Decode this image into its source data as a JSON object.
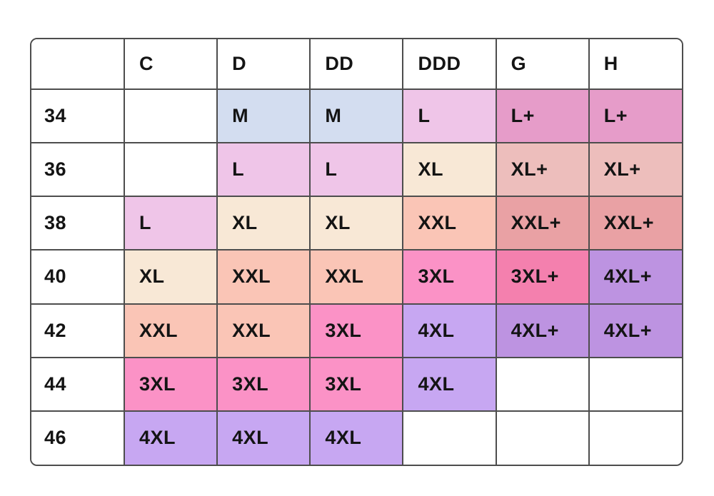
{
  "page": {
    "background": "#ffffff",
    "grid_border_color": "#4d4d4d",
    "text_color": "#141414"
  },
  "chart_data": {
    "type": "table",
    "title": "",
    "description_semantic": "bra-band-and-cup-size-to-clothing-size-conversion-chart",
    "columns": [
      "",
      "C",
      "D",
      "DD",
      "DDD",
      "G",
      "H"
    ],
    "rows": [
      [
        "34",
        "",
        "M",
        "M",
        "L",
        "L+",
        "L+"
      ],
      [
        "36",
        "",
        "L",
        "L",
        "XL",
        "XL+",
        "XL+"
      ],
      [
        "38",
        "L",
        "XL",
        "XL",
        "XXL",
        "XXL+",
        "XXL+"
      ],
      [
        "40",
        "XL",
        "XXL",
        "XXL",
        "3XL",
        "3XL+",
        "4XL+"
      ],
      [
        "42",
        "XXL",
        "XXL",
        "3XL",
        "4XL",
        "4XL+",
        "4XL+"
      ],
      [
        "44",
        "3XL",
        "3XL",
        "3XL",
        "4XL",
        "",
        ""
      ],
      [
        "46",
        "4XL",
        "4XL",
        "4XL",
        "",
        "",
        ""
      ]
    ],
    "cell_colors": {
      "": "#ffffff",
      "M": "#d3ddf0",
      "L": "#efc5e8",
      "L+": "#e69cc9",
      "XL": "#f8e8d6",
      "XL+": "#edbebc",
      "XXL": "#fac5b6",
      "XXL+": "#e9a1a4",
      "3XL": "#fb92c6",
      "3XL+": "#f480ae",
      "4XL": "#c7a7f2",
      "4XL+": "#bd93e1"
    },
    "layout_hints": {
      "grid": "on",
      "corner_radius_px": 10,
      "header_row": true,
      "first_column_is_row_header": true
    }
  }
}
